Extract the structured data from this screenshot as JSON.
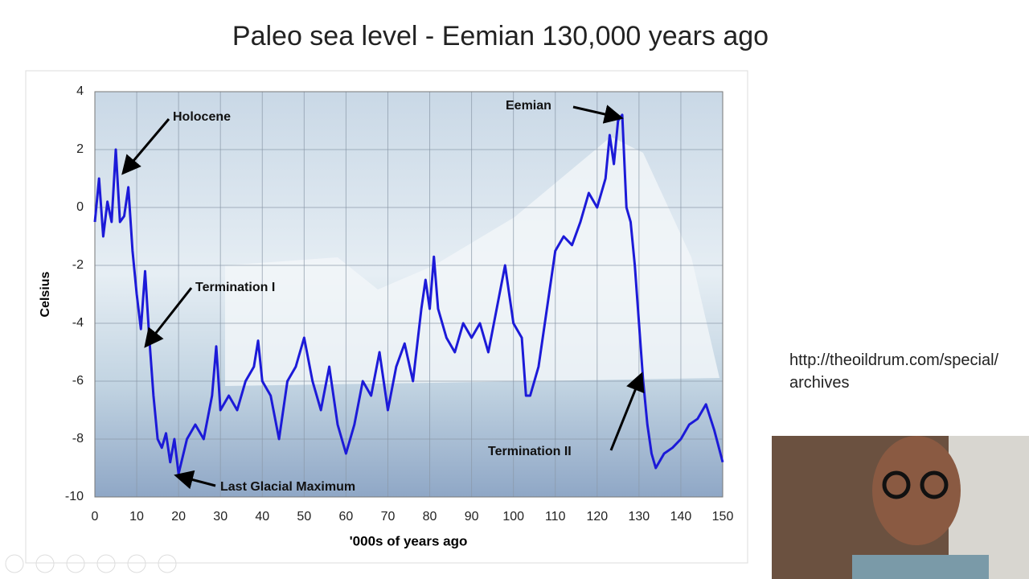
{
  "slide_title": "Paleo sea level - Eemian 130,000 years ago",
  "source_note": "http://theoildrum.com/special/archives",
  "chart_data": {
    "type": "line",
    "x_label": "'000s of years ago",
    "y_label": "Celsius",
    "x": [
      0,
      1,
      2,
      3,
      4,
      5,
      6,
      7,
      8,
      9,
      10,
      11,
      12,
      13,
      14,
      15,
      16,
      17,
      18,
      19,
      20,
      22,
      24,
      26,
      28,
      29,
      30,
      32,
      34,
      36,
      38,
      39,
      40,
      42,
      44,
      46,
      48,
      50,
      52,
      54,
      56,
      58,
      60,
      62,
      64,
      66,
      68,
      70,
      72,
      74,
      76,
      78,
      79,
      80,
      81,
      82,
      84,
      86,
      88,
      90,
      92,
      94,
      96,
      98,
      100,
      102,
      103,
      104,
      106,
      108,
      110,
      112,
      114,
      116,
      118,
      120,
      122,
      123,
      124,
      125,
      126,
      127,
      128,
      129,
      130,
      131,
      132,
      133,
      134,
      136,
      138,
      140,
      142,
      144,
      146,
      148,
      150
    ],
    "series": [
      {
        "color": "#1c1ad8",
        "values": [
          -0.5,
          1.0,
          -1.0,
          0.2,
          -0.5,
          2.0,
          -0.5,
          -0.3,
          0.7,
          -1.5,
          -3,
          -4.2,
          -2.2,
          -4.5,
          -6.5,
          -8,
          -8.3,
          -7.8,
          -8.8,
          -8,
          -9.2,
          -8,
          -7.5,
          -8,
          -6.5,
          -4.8,
          -7,
          -6.5,
          -7,
          -6,
          -5.5,
          -4.6,
          -6,
          -6.5,
          -8,
          -6,
          -5.5,
          -4.5,
          -6,
          -7,
          -5.5,
          -7.5,
          -8.5,
          -7.5,
          -6,
          -6.5,
          -5,
          -7,
          -5.5,
          -4.7,
          -6,
          -3.5,
          -2.5,
          -3.5,
          -1.7,
          -3.5,
          -4.5,
          -5,
          -4,
          -4.5,
          -4,
          -5,
          -3.5,
          -2,
          -4,
          -4.5,
          -6.5,
          -6.5,
          -5.5,
          -3.5,
          -1.5,
          -1,
          -1.3,
          -0.5,
          0.5,
          0,
          1,
          2.5,
          1.5,
          3,
          3.2,
          0,
          -0.5,
          -2,
          -4,
          -6,
          -7.5,
          -8.5,
          -9,
          -8.5,
          -8.3,
          -8,
          -7.5,
          -7.3,
          -6.8,
          -7.7,
          -8.8
        ]
      }
    ],
    "xlim": [
      0,
      150
    ],
    "ylim": [
      -10,
      4
    ],
    "xticks": [
      0,
      10,
      20,
      30,
      40,
      50,
      60,
      70,
      80,
      90,
      100,
      110,
      120,
      130,
      140,
      150
    ],
    "yticks": [
      4,
      2,
      0,
      -2,
      -4,
      -6,
      -8,
      -10
    ],
    "grid": true,
    "annotations": [
      "Holocene",
      "Termination I",
      "Last Glacial Maximum",
      "Eemian",
      "Termination II"
    ]
  }
}
